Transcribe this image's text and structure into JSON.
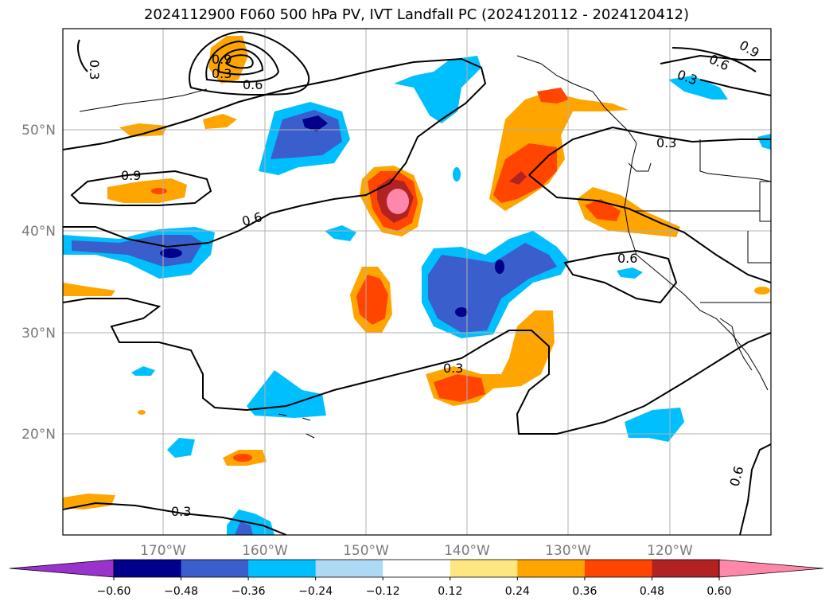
{
  "title": "2024112900 F060 500 hPa PV, IVT Landfall PC (2024120112 - 2024120412)",
  "lat_labels": [
    "50°N",
    "40°N",
    "30°N",
    "20°N"
  ],
  "lon_labels": [
    "170°W",
    "160°W",
    "150°W",
    "140°W",
    "130°W",
    "120°W"
  ],
  "colorbar": {
    "ticks": [
      "−0.60",
      "−0.48",
      "−0.36",
      "−0.24",
      "−0.12",
      "0.12",
      "0.24",
      "0.36",
      "0.48",
      "0.60"
    ],
    "colors": [
      "#9933cc",
      "#00008b",
      "#3a5fcd",
      "#00bfff",
      "#add8f6",
      "#ffffff",
      "#ffe680",
      "#ffa500",
      "#ff4500",
      "#b22222",
      "#ff88aa"
    ]
  },
  "contour_labels": [
    "0.3",
    "0.6",
    "0.9",
    "0.9",
    "0.6",
    "0.6",
    "0.3",
    "0.6",
    "0.3",
    "0.3",
    "0.3",
    "0.6",
    "0.9",
    "0.3"
  ],
  "map_extent": {
    "lon_min": -180,
    "lon_max": -110,
    "lat_min": 10,
    "lat_max": 60
  }
}
